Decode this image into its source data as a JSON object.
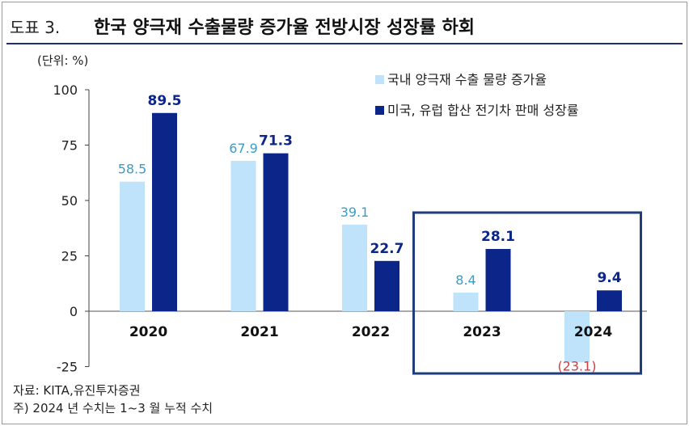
{
  "header": {
    "figure_number": "도표 3.",
    "title": "한국 양극재 수출물량 증가율 전방시장 성장률 하회"
  },
  "chart_data": {
    "type": "bar",
    "unit_label": "(단위: %)",
    "categories": [
      "2020",
      "2021",
      "2022",
      "2023",
      "2024"
    ],
    "series": [
      {
        "name": "국내 양극재 수출 물량 증가율",
        "color": "#bfe3fb",
        "label_color": "#3a9dc8",
        "values": [
          58.5,
          67.9,
          39.1,
          8.4,
          -23.1
        ],
        "labels": [
          "58.5",
          "67.9",
          "39.1",
          "8.4",
          "(23.1)"
        ]
      },
      {
        "name": "미국, 유럽 합산 전기차 판매 성장률",
        "color": "#0b2588",
        "label_color": "#0b2588",
        "values": [
          89.5,
          71.3,
          22.7,
          28.1,
          9.4
        ],
        "labels": [
          "89.5",
          "71.3",
          "22.7",
          "28.1",
          "9.4"
        ]
      }
    ],
    "negative_label_color": "#d63a3a",
    "y_ticks": [
      "100",
      "75",
      "50",
      "25",
      "0",
      "-25"
    ],
    "ylim": [
      -25,
      100
    ],
    "highlight": {
      "categories": [
        "2023",
        "2024"
      ],
      "color": "#1f3d7a"
    }
  },
  "footer": {
    "source": "자료: KITA,유진투자증권",
    "note": "주) 2024 년 수치는 1~3 월 누적 수치"
  }
}
